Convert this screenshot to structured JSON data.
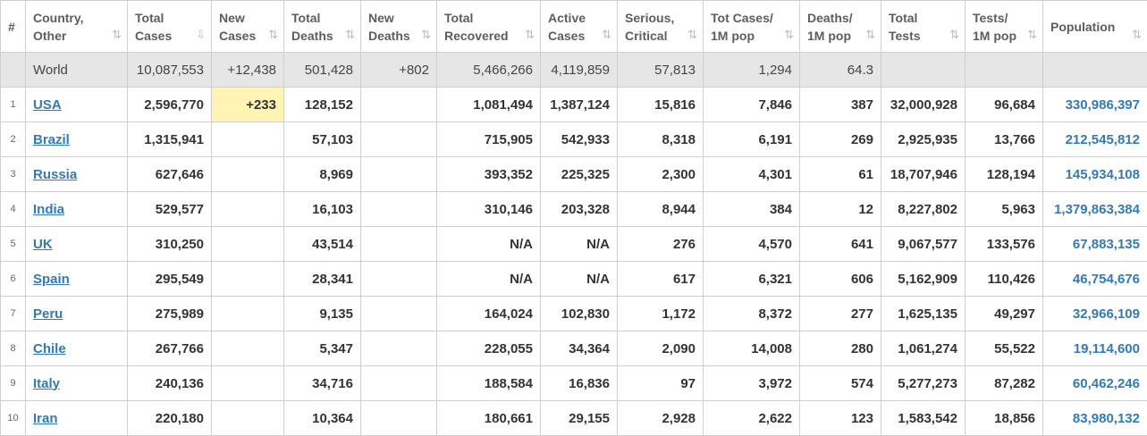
{
  "headers": [
    {
      "l1": "#",
      "l2": "",
      "sort": ""
    },
    {
      "l1": "Country,",
      "l2": "Other",
      "sort": "⇅"
    },
    {
      "l1": "Total",
      "l2": "Cases",
      "sort": "⇩"
    },
    {
      "l1": "New",
      "l2": "Cases",
      "sort": "⇅"
    },
    {
      "l1": "Total",
      "l2": "Deaths",
      "sort": "⇅"
    },
    {
      "l1": "New",
      "l2": "Deaths",
      "sort": "⇅"
    },
    {
      "l1": "Total",
      "l2": "Recovered",
      "sort": "⇅"
    },
    {
      "l1": "Active",
      "l2": "Cases",
      "sort": "⇅"
    },
    {
      "l1": "Serious,",
      "l2": "Critical",
      "sort": "⇅"
    },
    {
      "l1": "Tot Cases/",
      "l2": "1M pop",
      "sort": "⇅"
    },
    {
      "l1": "Deaths/",
      "l2": "1M pop",
      "sort": "⇅"
    },
    {
      "l1": "Total",
      "l2": "Tests",
      "sort": "⇅"
    },
    {
      "l1": "Tests/",
      "l2": "1M pop",
      "sort": "⇅"
    },
    {
      "l1": "Population",
      "l2": "",
      "sort": "⇅"
    }
  ],
  "world": {
    "rank": "",
    "country": "World",
    "total_cases": "10,087,553",
    "new_cases": "+12,438",
    "total_deaths": "501,428",
    "new_deaths": "+802",
    "total_recovered": "5,466,266",
    "active_cases": "4,119,859",
    "serious": "57,813",
    "cases_per_1m": "1,294",
    "deaths_per_1m": "64.3",
    "total_tests": "",
    "tests_per_1m": "",
    "population": ""
  },
  "rows": [
    {
      "rank": "1",
      "country": "USA",
      "total_cases": "2,596,770",
      "new_cases": "+233",
      "total_deaths": "128,152",
      "new_deaths": "",
      "total_recovered": "1,081,494",
      "active_cases": "1,387,124",
      "serious": "15,816",
      "cases_per_1m": "7,846",
      "deaths_per_1m": "387",
      "total_tests": "32,000,928",
      "tests_per_1m": "96,684",
      "population": "330,986,397"
    },
    {
      "rank": "2",
      "country": "Brazil",
      "total_cases": "1,315,941",
      "new_cases": "",
      "total_deaths": "57,103",
      "new_deaths": "",
      "total_recovered": "715,905",
      "active_cases": "542,933",
      "serious": "8,318",
      "cases_per_1m": "6,191",
      "deaths_per_1m": "269",
      "total_tests": "2,925,935",
      "tests_per_1m": "13,766",
      "population": "212,545,812"
    },
    {
      "rank": "3",
      "country": "Russia",
      "total_cases": "627,646",
      "new_cases": "",
      "total_deaths": "8,969",
      "new_deaths": "",
      "total_recovered": "393,352",
      "active_cases": "225,325",
      "serious": "2,300",
      "cases_per_1m": "4,301",
      "deaths_per_1m": "61",
      "total_tests": "18,707,946",
      "tests_per_1m": "128,194",
      "population": "145,934,108"
    },
    {
      "rank": "4",
      "country": "India",
      "total_cases": "529,577",
      "new_cases": "",
      "total_deaths": "16,103",
      "new_deaths": "",
      "total_recovered": "310,146",
      "active_cases": "203,328",
      "serious": "8,944",
      "cases_per_1m": "384",
      "deaths_per_1m": "12",
      "total_tests": "8,227,802",
      "tests_per_1m": "5,963",
      "population": "1,379,863,384"
    },
    {
      "rank": "5",
      "country": "UK",
      "total_cases": "310,250",
      "new_cases": "",
      "total_deaths": "43,514",
      "new_deaths": "",
      "total_recovered": "N/A",
      "active_cases": "N/A",
      "serious": "276",
      "cases_per_1m": "4,570",
      "deaths_per_1m": "641",
      "total_tests": "9,067,577",
      "tests_per_1m": "133,576",
      "population": "67,883,135"
    },
    {
      "rank": "6",
      "country": "Spain",
      "total_cases": "295,549",
      "new_cases": "",
      "total_deaths": "28,341",
      "new_deaths": "",
      "total_recovered": "N/A",
      "active_cases": "N/A",
      "serious": "617",
      "cases_per_1m": "6,321",
      "deaths_per_1m": "606",
      "total_tests": "5,162,909",
      "tests_per_1m": "110,426",
      "population": "46,754,676"
    },
    {
      "rank": "7",
      "country": "Peru",
      "total_cases": "275,989",
      "new_cases": "",
      "total_deaths": "9,135",
      "new_deaths": "",
      "total_recovered": "164,024",
      "active_cases": "102,830",
      "serious": "1,172",
      "cases_per_1m": "8,372",
      "deaths_per_1m": "277",
      "total_tests": "1,625,135",
      "tests_per_1m": "49,297",
      "population": "32,966,109"
    },
    {
      "rank": "8",
      "country": "Chile",
      "total_cases": "267,766",
      "new_cases": "",
      "total_deaths": "5,347",
      "new_deaths": "",
      "total_recovered": "228,055",
      "active_cases": "34,364",
      "serious": "2,090",
      "cases_per_1m": "14,008",
      "deaths_per_1m": "280",
      "total_tests": "1,061,274",
      "tests_per_1m": "55,522",
      "population": "19,114,600"
    },
    {
      "rank": "9",
      "country": "Italy",
      "total_cases": "240,136",
      "new_cases": "",
      "total_deaths": "34,716",
      "new_deaths": "",
      "total_recovered": "188,584",
      "active_cases": "16,836",
      "serious": "97",
      "cases_per_1m": "3,972",
      "deaths_per_1m": "574",
      "total_tests": "5,277,273",
      "tests_per_1m": "87,282",
      "population": "60,462,246"
    },
    {
      "rank": "10",
      "country": "Iran",
      "total_cases": "220,180",
      "new_cases": "",
      "total_deaths": "10,364",
      "new_deaths": "",
      "total_recovered": "180,661",
      "active_cases": "29,155",
      "serious": "2,928",
      "cases_per_1m": "2,622",
      "deaths_per_1m": "123",
      "total_tests": "1,583,542",
      "tests_per_1m": "18,856",
      "population": "83,980,132"
    }
  ],
  "colors": {
    "link": "#337ab7",
    "world_bg": "#e6e6e6",
    "new_cases_highlight": "#fff4b3",
    "border": "#cfcfcf"
  }
}
